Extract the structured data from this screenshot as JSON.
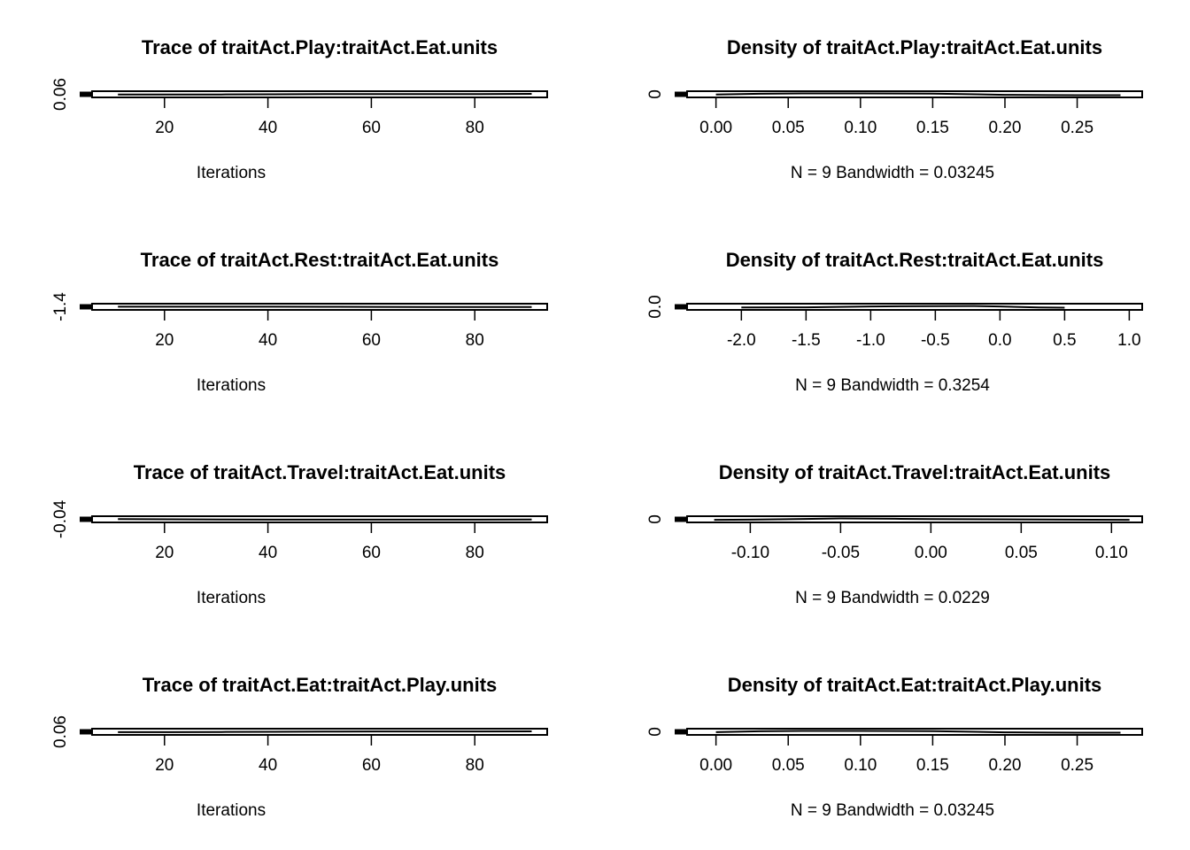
{
  "chart_data": [
    {
      "type": "line",
      "title": "Trace of traitAct.Play:traitAct.Eat.units",
      "xlabel": "Iterations",
      "ylabel": "",
      "xlim": [
        6,
        94
      ],
      "ylim": [
        0.04,
        0.08
      ],
      "x_ticks": [
        20,
        40,
        60,
        80
      ],
      "x_tick_labels": [
        "20",
        "40",
        "60",
        "80"
      ],
      "y_ticks": [
        0.06
      ],
      "y_tick_labels": [
        "0.06"
      ],
      "x": [
        11,
        21,
        31,
        41,
        51,
        61,
        71,
        81,
        91
      ],
      "y": [
        0.058,
        0.058,
        0.059,
        0.06,
        0.061,
        0.062,
        0.062,
        0.062,
        0.063
      ]
    },
    {
      "type": "line",
      "title": "Density of traitAct.Play:traitAct.Eat.units",
      "xlabel": "N = 9   Bandwidth = 0.03245",
      "ylabel": "",
      "xlim": [
        -0.02,
        0.295
      ],
      "ylim": [
        -5,
        5
      ],
      "x_ticks": [
        0,
        0.05,
        0.1,
        0.15,
        0.2,
        0.25
      ],
      "x_tick_labels": [
        "0.00",
        "0.05",
        "0.10",
        "0.15",
        "0.20",
        "0.25"
      ],
      "y_ticks": [
        0
      ],
      "y_tick_labels": [
        "0"
      ],
      "x": [
        0,
        0.03,
        0.06,
        0.1,
        0.15,
        0.18,
        0.2,
        0.23,
        0.25,
        0.28
      ],
      "y": [
        -0.5,
        0.8,
        1.5,
        1.5,
        1.2,
        0.0,
        -0.9,
        -1.3,
        -1.4,
        -1.4
      ]
    },
    {
      "type": "line",
      "title": "Trace of traitAct.Rest:traitAct.Eat.units",
      "xlabel": "Iterations",
      "ylabel": "",
      "xlim": [
        6,
        94
      ],
      "ylim": [
        -1.9,
        -0.9
      ],
      "x_ticks": [
        20,
        40,
        60,
        80
      ],
      "x_tick_labels": [
        "20",
        "40",
        "60",
        "80"
      ],
      "y_ticks": [
        -1.4
      ],
      "y_tick_labels": [
        "-1.4"
      ],
      "x": [
        11,
        21,
        31,
        41,
        51,
        61,
        71,
        81,
        91
      ],
      "y": [
        -1.38,
        -1.38,
        -1.38,
        -1.39,
        -1.4,
        -1.42,
        -1.43,
        -1.44,
        -1.44
      ]
    },
    {
      "type": "line",
      "title": "Density of traitAct.Rest:traitAct.Eat.units",
      "xlabel": "N = 9   Bandwidth = 0.3254",
      "ylabel": "",
      "xlim": [
        -2.42,
        1.1
      ],
      "ylim": [
        -0.5,
        0.5
      ],
      "x_ticks": [
        -2,
        -1.5,
        -1,
        -0.5,
        0,
        0.5,
        1
      ],
      "x_tick_labels": [
        "-2.0",
        "-1.5",
        "-1.0",
        "-0.5",
        "0.0",
        "0.5",
        "1.0"
      ],
      "y_ticks": [
        0
      ],
      "y_tick_labels": [
        "0.0"
      ],
      "x": [
        -2.0,
        -1.5,
        -1.0,
        -0.5,
        -0.2,
        0.0,
        0.3,
        0.5
      ],
      "y": [
        -0.12,
        -0.08,
        0.05,
        0.12,
        0.13,
        0.06,
        -0.1,
        -0.14
      ]
    },
    {
      "type": "line",
      "title": "Trace of traitAct.Travel:traitAct.Eat.units",
      "xlabel": "Iterations",
      "ylabel": "",
      "xlim": [
        6,
        94
      ],
      "ylim": [
        -0.06,
        -0.02
      ],
      "x_ticks": [
        20,
        40,
        60,
        80
      ],
      "x_tick_labels": [
        "20",
        "40",
        "60",
        "80"
      ],
      "y_ticks": [
        -0.04
      ],
      "y_tick_labels": [
        "-0.04"
      ],
      "x": [
        11,
        21,
        31,
        41,
        51,
        61,
        71,
        81,
        91
      ],
      "y": [
        -0.039,
        -0.04,
        -0.041,
        -0.042,
        -0.042,
        -0.042,
        -0.042,
        -0.042,
        -0.041
      ]
    },
    {
      "type": "line",
      "title": "Density of traitAct.Travel:traitAct.Eat.units",
      "xlabel": "N = 9   Bandwidth = 0.0229",
      "ylabel": "",
      "xlim": [
        -0.135,
        0.117
      ],
      "ylim": [
        -5,
        5
      ],
      "x_ticks": [
        -0.1,
        -0.05,
        0,
        0.05,
        0.1
      ],
      "x_tick_labels": [
        "-0.10",
        "-0.05",
        "0.00",
        "0.05",
        "0.10"
      ],
      "y_ticks": [
        0
      ],
      "y_tick_labels": [
        "0"
      ],
      "x": [
        -0.12,
        -0.1,
        -0.07,
        -0.05,
        -0.02,
        0.0,
        0.03,
        0.06,
        0.09,
        0.11
      ],
      "y": [
        -0.8,
        -0.6,
        0.5,
        1.5,
        0.8,
        0.3,
        0.0,
        -0.3,
        -0.7,
        -0.8
      ]
    },
    {
      "type": "line",
      "title": "Trace of traitAct.Eat:traitAct.Play.units",
      "xlabel": "Iterations",
      "ylabel": "",
      "xlim": [
        6,
        94
      ],
      "ylim": [
        0.04,
        0.08
      ],
      "x_ticks": [
        20,
        40,
        60,
        80
      ],
      "x_tick_labels": [
        "20",
        "40",
        "60",
        "80"
      ],
      "y_ticks": [
        0.06
      ],
      "y_tick_labels": [
        "0.06"
      ],
      "x": [
        11,
        21,
        31,
        41,
        51,
        61,
        71,
        81,
        91
      ],
      "y": [
        0.058,
        0.058,
        0.059,
        0.06,
        0.061,
        0.062,
        0.062,
        0.062,
        0.063
      ]
    },
    {
      "type": "line",
      "title": "Density of traitAct.Eat:traitAct.Play.units",
      "xlabel": "N = 9   Bandwidth = 0.03245",
      "ylabel": "",
      "xlim": [
        -0.02,
        0.295
      ],
      "ylim": [
        -5,
        5
      ],
      "x_ticks": [
        0,
        0.05,
        0.1,
        0.15,
        0.2,
        0.25
      ],
      "x_tick_labels": [
        "0.00",
        "0.05",
        "0.10",
        "0.15",
        "0.20",
        "0.25"
      ],
      "y_ticks": [
        0
      ],
      "y_tick_labels": [
        "0"
      ],
      "x": [
        0,
        0.03,
        0.06,
        0.1,
        0.15,
        0.18,
        0.2,
        0.23,
        0.25,
        0.28
      ],
      "y": [
        -0.5,
        0.8,
        1.5,
        1.5,
        1.2,
        0.0,
        -0.9,
        -1.3,
        -1.4,
        -1.4
      ]
    }
  ]
}
